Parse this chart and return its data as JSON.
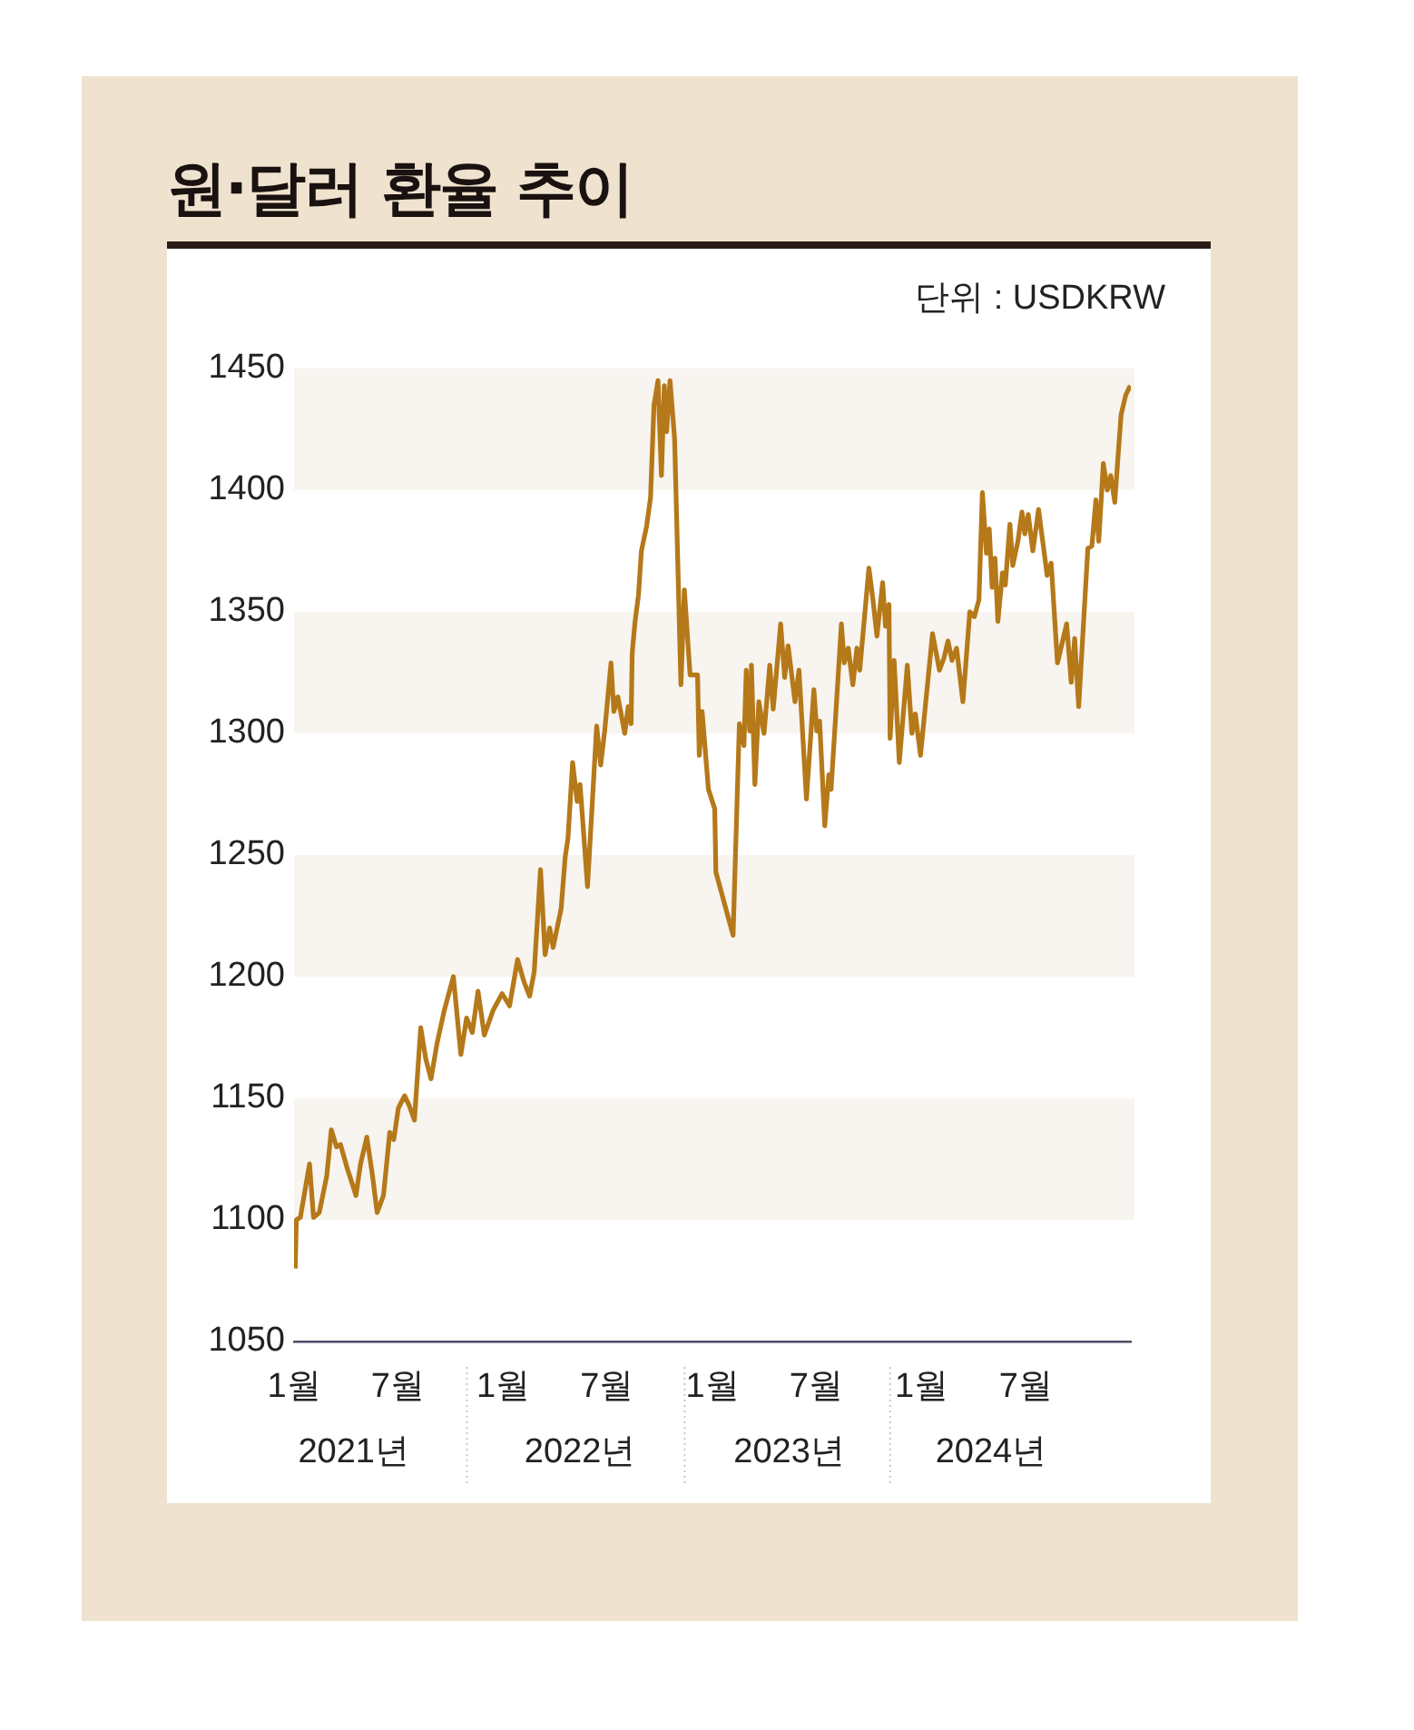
{
  "chart_data": {
    "type": "line",
    "title": "원·달러 환율 추이",
    "annotations": [
      "단위 : USDKRW"
    ],
    "x": [
      "2021-01-03",
      "2021-01-05",
      "2021-01-12",
      "2021-01-28",
      "2021-02-04",
      "2021-02-14",
      "2021-02-27",
      "2021-03-07",
      "2021-03-16",
      "2021-03-23",
      "2021-04-04",
      "2021-04-11",
      "2021-04-19",
      "2021-04-27",
      "2021-05-08",
      "2021-05-18",
      "2021-05-26",
      "2021-06-06",
      "2021-06-17",
      "2021-06-24",
      "2021-07-02",
      "2021-07-13",
      "2021-07-21",
      "2021-07-30",
      "2021-08-10",
      "2021-08-19",
      "2021-08-28",
      "2021-09-07",
      "2021-09-20",
      "2021-10-06",
      "2021-10-19",
      "2021-10-29",
      "2021-11-08",
      "2021-11-18",
      "2021-11-29",
      "2021-12-14",
      "2021-12-30",
      "2022-01-12",
      "2022-01-26",
      "2022-02-06",
      "2022-02-16",
      "2022-02-24",
      "2022-03-07",
      "2022-03-15",
      "2022-03-23",
      "2022-03-29",
      "2022-04-12",
      "2022-04-19",
      "2022-04-24",
      "2022-05-02",
      "2022-05-10",
      "2022-05-15",
      "2022-05-20",
      "2022-05-28",
      "2022-06-13",
      "2022-06-20",
      "2022-06-27",
      "2022-07-08",
      "2022-07-13",
      "2022-07-20",
      "2022-08-01",
      "2022-08-07",
      "2022-08-12",
      "2022-08-14",
      "2022-08-19",
      "2022-08-25",
      "2022-08-30",
      "2022-09-08",
      "2022-09-15",
      "2022-09-21",
      "2022-09-28",
      "2022-10-04",
      "2022-10-09",
      "2022-10-13",
      "2022-10-19",
      "2022-10-27",
      "2022-11-07",
      "2022-11-13",
      "2022-11-23",
      "2022-12-06",
      "2022-12-09",
      "2022-12-14",
      "2022-12-25",
      "2023-01-05",
      "2023-01-07",
      "2023-02-06",
      "2023-02-17",
      "2023-02-25",
      "2023-03-01",
      "2023-03-07",
      "2023-03-10",
      "2023-03-16",
      "2023-03-23",
      "2023-04-01",
      "2023-04-11",
      "2023-04-17",
      "2023-04-30",
      "2023-05-07",
      "2023-05-13",
      "2023-05-25",
      "2023-06-01",
      "2023-06-14",
      "2023-06-27",
      "2023-07-02",
      "2023-07-07",
      "2023-07-16",
      "2023-07-23",
      "2023-07-27",
      "2023-08-14",
      "2023-08-19",
      "2023-08-26",
      "2023-09-03",
      "2023-09-10",
      "2023-09-15",
      "2023-10-01",
      "2023-10-08",
      "2023-10-15",
      "2023-10-25",
      "2023-10-30",
      "2023-11-05",
      "2023-11-07",
      "2023-11-14",
      "2023-11-23",
      "2023-12-07",
      "2023-12-15",
      "2023-12-21",
      "2023-12-30",
      "2024-01-20",
      "2024-02-01",
      "2024-02-09",
      "2024-02-16",
      "2024-02-23",
      "2024-03-02",
      "2024-03-13",
      "2024-03-25",
      "2024-04-02",
      "2024-04-10",
      "2024-04-16",
      "2024-04-23",
      "2024-04-28",
      "2024-05-03",
      "2024-05-08",
      "2024-05-13",
      "2024-05-21",
      "2024-05-26",
      "2024-06-03",
      "2024-06-08",
      "2024-06-17",
      "2024-06-24",
      "2024-06-29",
      "2024-07-05",
      "2024-07-13",
      "2024-07-23",
      "2024-08-07",
      "2024-08-14",
      "2024-08-25",
      "2024-09-10",
      "2024-09-18",
      "2024-09-24",
      "2024-10-01",
      "2024-10-17",
      "2024-10-24",
      "2024-10-31",
      "2024-11-05",
      "2024-11-13",
      "2024-11-20",
      "2024-11-26",
      "2024-12-03",
      "2024-12-09",
      "2024-12-14",
      "2024-12-22",
      "2024-12-30"
    ],
    "series": [
      {
        "color": "#b5791a",
        "values": [
          1080,
          1100,
          1101,
          1123,
          1101,
          1103,
          1118,
          1137,
          1130,
          1131,
          1121,
          1116,
          1110,
          1123,
          1134,
          1118,
          1103,
          1110,
          1136,
          1133,
          1146,
          1151,
          1147,
          1141,
          1179,
          1166,
          1158,
          1172,
          1186,
          1200,
          1168,
          1183,
          1177,
          1194,
          1176,
          1186,
          1193,
          1188,
          1207,
          1198,
          1192,
          1202,
          1244,
          1209,
          1220,
          1212,
          1228,
          1249,
          1257,
          1288,
          1272,
          1279,
          1263,
          1237,
          1303,
          1287,
          1301,
          1329,
          1309,
          1315,
          1300,
          1311,
          1304,
          1333,
          1346,
          1357,
          1375,
          1385,
          1397,
          1435,
          1445,
          1406,
          1443,
          1424,
          1445,
          1421,
          1320,
          1359,
          1324,
          1324,
          1291,
          1309,
          1277,
          1269,
          1243,
          1217,
          1304,
          1295,
          1326,
          1301,
          1328,
          1279,
          1313,
          1300,
          1328,
          1310,
          1345,
          1323,
          1336,
          1313,
          1326,
          1273,
          1318,
          1301,
          1305,
          1262,
          1283,
          1277,
          1345,
          1329,
          1335,
          1320,
          1335,
          1326,
          1368,
          1355,
          1340,
          1362,
          1344,
          1353,
          1298,
          1330,
          1288,
          1328,
          1300,
          1308,
          1291,
          1341,
          1326,
          1331,
          1338,
          1330,
          1335,
          1313,
          1350,
          1348,
          1355,
          1399,
          1374,
          1384,
          1360,
          1372,
          1346,
          1366,
          1361,
          1386,
          1369,
          1379,
          1391,
          1382,
          1390,
          1375,
          1392,
          1365,
          1370,
          1329,
          1345,
          1321,
          1339,
          1311,
          1376,
          1377,
          1396,
          1379,
          1411,
          1400,
          1406,
          1395,
          1415,
          1431,
          1439,
          1443
        ]
      }
    ],
    "marker": "none",
    "line_style": "solid",
    "xlim": [
      "2021-01-01",
      "2024-12-31"
    ],
    "xticks": [
      {
        "value": "2021-01-01",
        "label": "1월"
      },
      {
        "value": "2021-07-01",
        "label": "7월"
      },
      {
        "value": "2022-01-01",
        "label": "1월"
      },
      {
        "value": "2022-07-01",
        "label": "7월"
      },
      {
        "value": "2023-01-01",
        "label": "1월"
      },
      {
        "value": "2023-07-01",
        "label": "7월"
      },
      {
        "value": "2024-01-01",
        "label": "1월"
      },
      {
        "value": "2024-07-01",
        "label": "7월"
      }
    ],
    "x2lim": [
      "2021-01-01",
      "2024-12-31"
    ],
    "x2ticks": [
      {
        "value": "2021-04-15",
        "label": "2021년"
      },
      {
        "value": "2022-05-15",
        "label": "2022년"
      },
      {
        "value": "2023-05-15",
        "label": "2023년"
      },
      {
        "value": "2024-05-01",
        "label": "2024년"
      }
    ],
    "ylim": [
      1050,
      1450
    ],
    "yticks": [
      1050,
      1100,
      1150,
      1200,
      1250,
      1300,
      1350,
      1400,
      1450
    ],
    "bands": [
      {
        "axis": "y",
        "from": 1100,
        "to": 1150,
        "color": "#f8f4ef"
      },
      {
        "axis": "y",
        "from": 1200,
        "to": 1250,
        "color": "#f8f4ef"
      },
      {
        "axis": "y",
        "from": 1300,
        "to": 1350,
        "color": "#f8f4ef"
      },
      {
        "axis": "y",
        "from": 1400,
        "to": 1450,
        "color": "#f8f4ef"
      }
    ]
  }
}
